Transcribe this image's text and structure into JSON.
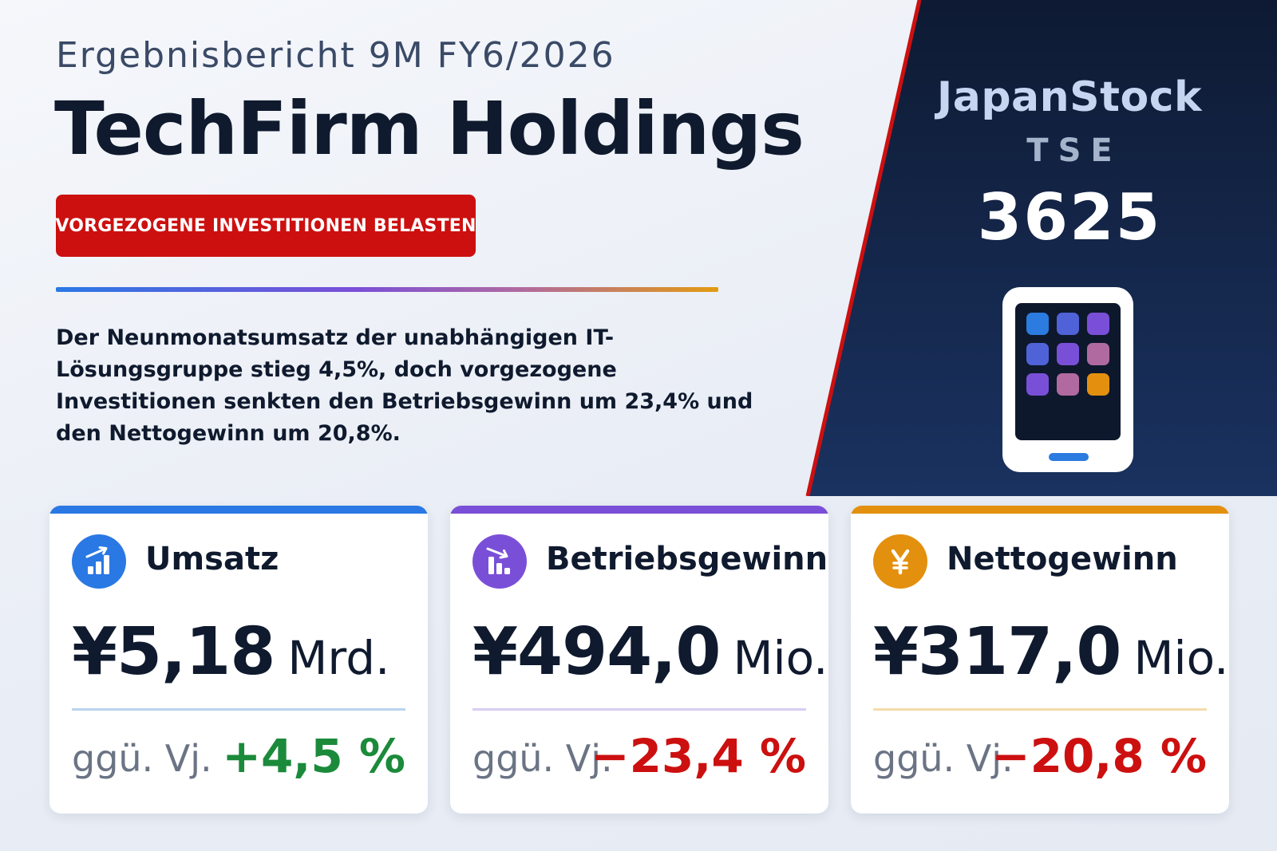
{
  "header": {
    "eyebrow": "Ergebnisbericht 9M FY6/2026",
    "company": "TechFirm Holdings",
    "badge": "VORGEZOGENE INVESTITIONEN BELASTEN",
    "summary": "Der Neunmonatsumsatz der unabhängigen IT-Lösungsgruppe stieg 4,5%, doch vorgezogene Investitionen senkten den Betriebsgewinn um 23,4% und den Nettogewinn um 20,8%."
  },
  "brand": {
    "name": "JapanStock",
    "exchange": "TSE",
    "code": "3625",
    "icon": "tablet-icon"
  },
  "colors": {
    "accent_red": "#cc1010",
    "panel_navy": "#0e1a33",
    "blue": "#2a78e4",
    "purple": "#7a4fd8",
    "orange": "#e3900e",
    "positive": "#1b8a3a",
    "negative": "#cc1010"
  },
  "kpis": [
    {
      "label": "Umsatz",
      "icon": "bar-chart-up-icon",
      "value": "¥5,18",
      "unit": "Mrd.",
      "compare_label": "ggü. Vj.",
      "change": "+4,5 %",
      "direction": "up",
      "color": "#2a78e4"
    },
    {
      "label": "Betriebsgewinn",
      "icon": "bar-chart-down-icon",
      "value": "¥494,0",
      "unit": "Mio.",
      "compare_label": "ggü. Vj.",
      "change": "−23,4 %",
      "direction": "down",
      "color": "#7a4fd8"
    },
    {
      "label": "Nettogewinn",
      "icon": "yen-icon",
      "value": "¥317,0",
      "unit": "Mio.",
      "compare_label": "ggü. Vj.",
      "change": "−20,8 %",
      "direction": "down",
      "color": "#e3900e"
    }
  ]
}
